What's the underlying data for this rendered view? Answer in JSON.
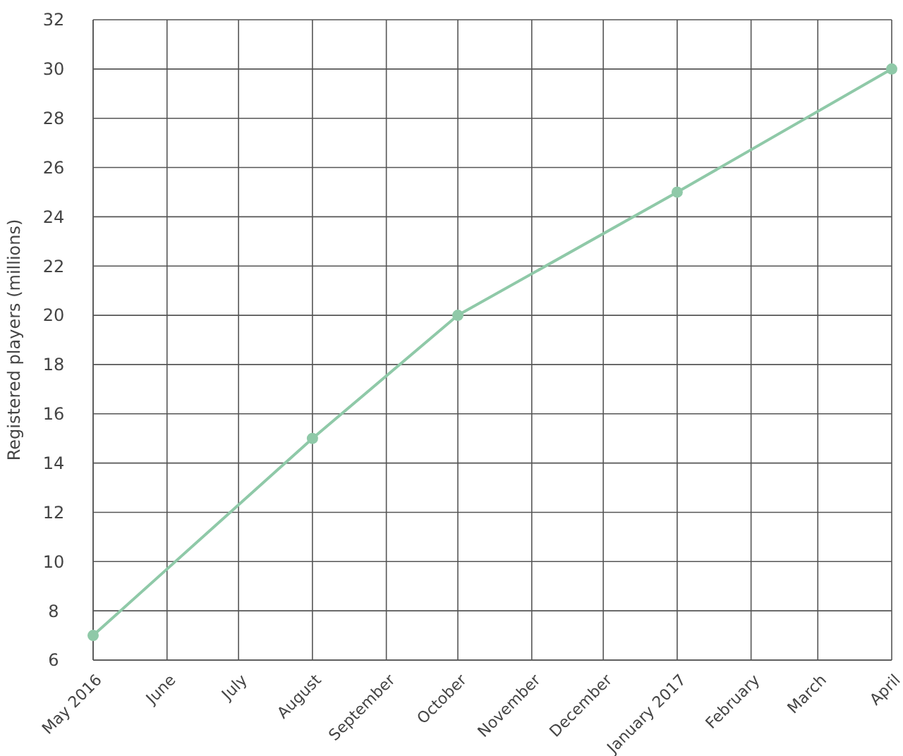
{
  "chart_data": {
    "type": "line",
    "ylabel": "Registered players (millions)",
    "x": [
      "2016-05",
      "2016-08",
      "2016-10",
      "2017-01",
      "2017-04"
    ],
    "series": [
      {
        "color": "#8fc9a8",
        "values": [
          7,
          15,
          20,
          25,
          30
        ]
      }
    ],
    "xlim": [
      "2016-05",
      "2017-04"
    ],
    "xticks": [
      {
        "value": "2016-05",
        "label": "May 2016"
      },
      {
        "value": "2016-06",
        "label": "June"
      },
      {
        "value": "2016-07",
        "label": "July"
      },
      {
        "value": "2016-08",
        "label": "August"
      },
      {
        "value": "2016-09",
        "label": "September"
      },
      {
        "value": "2016-10",
        "label": "October"
      },
      {
        "value": "2016-11",
        "label": "November"
      },
      {
        "value": "2016-12",
        "label": "December"
      },
      {
        "value": "2017-01",
        "label": "January 2017"
      },
      {
        "value": "2017-02",
        "label": "February"
      },
      {
        "value": "2017-03",
        "label": "March"
      },
      {
        "value": "2017-04",
        "label": "April"
      }
    ],
    "ylim": [
      6,
      32
    ],
    "yticks": [
      6,
      8,
      10,
      12,
      14,
      16,
      18,
      20,
      22,
      24,
      26,
      28,
      30,
      32
    ],
    "grid": true,
    "marker": "circle",
    "line_style": "solid"
  }
}
